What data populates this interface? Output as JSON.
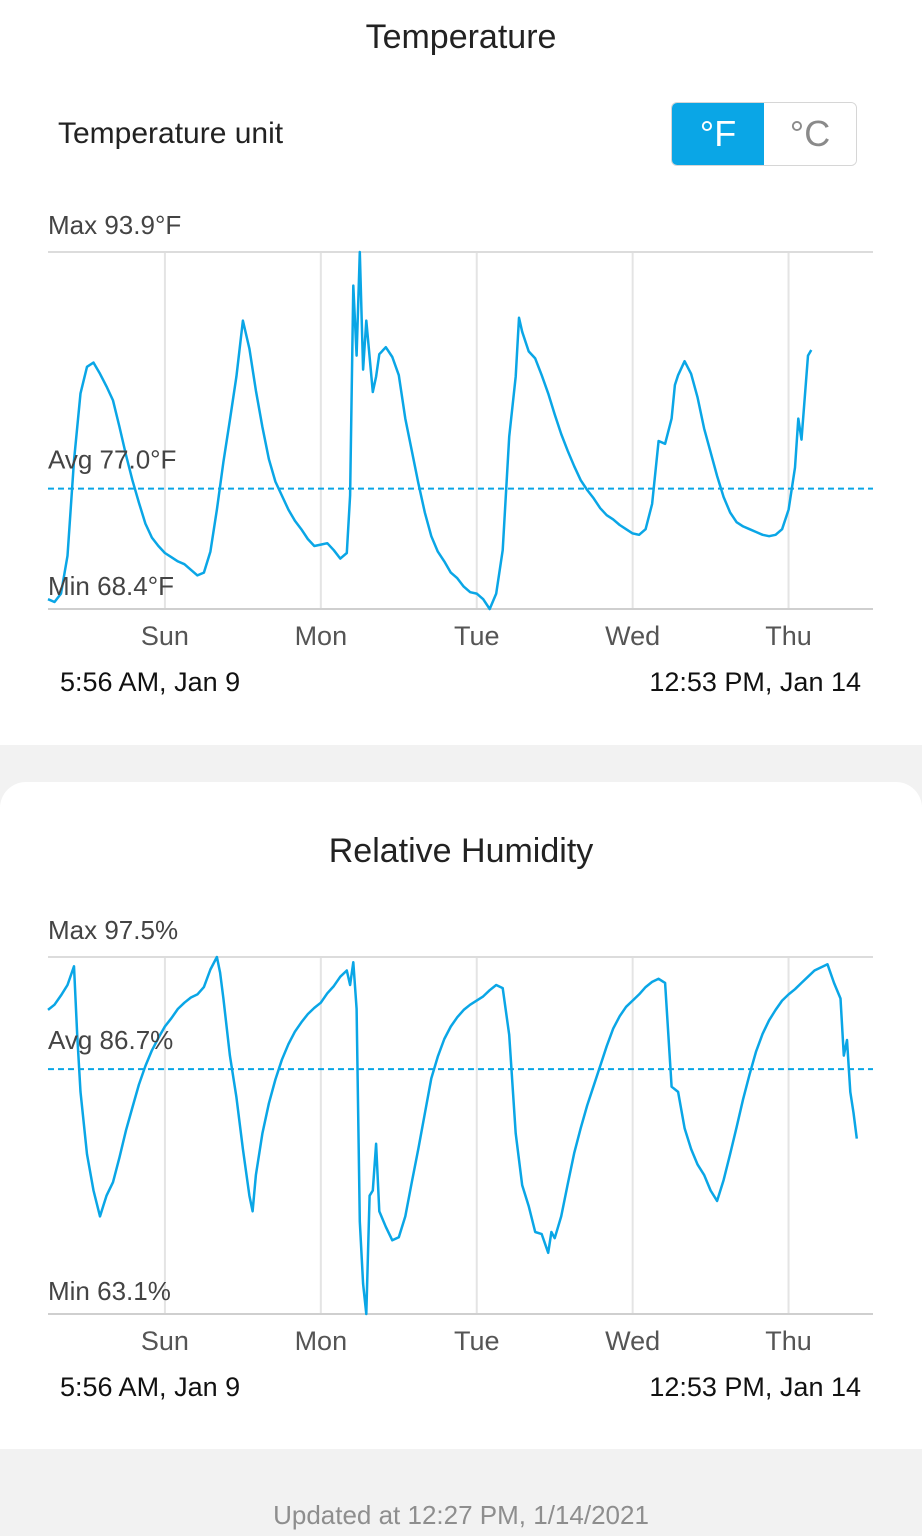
{
  "temperature": {
    "title": "Temperature",
    "unit_label": "Temperature unit",
    "unit_options": [
      "°F",
      "°C"
    ],
    "selected_unit": "°F",
    "start_label": "5:56 AM,  Jan 9",
    "end_label": "12:53 PM,  Jan 14",
    "chart_data": {
      "type": "line",
      "series_color": "#0aa6e6",
      "max_label": "Max 93.9°F",
      "avg_label": "Avg 77.0°F",
      "min_label": "Min 68.4°F",
      "max": 93.9,
      "avg": 77.0,
      "min": 68.4,
      "ylim": [
        68.4,
        93.9
      ],
      "xlim": [
        0,
        127
      ],
      "x_unit": "hours since 5:56 AM, Jan 9",
      "tick_labels": [
        "Sun",
        "Mon",
        "Tue",
        "Wed",
        "Thu"
      ],
      "tick_positions": [
        18,
        42,
        66,
        90,
        114
      ],
      "points": [
        [
          0,
          69.1
        ],
        [
          1,
          68.9
        ],
        [
          2,
          69.5
        ],
        [
          3,
          72.2
        ],
        [
          4,
          79.0
        ],
        [
          5,
          83.8
        ],
        [
          6,
          85.7
        ],
        [
          7,
          86.0
        ],
        [
          8,
          85.2
        ],
        [
          9,
          84.3
        ],
        [
          10,
          83.3
        ],
        [
          11,
          81.4
        ],
        [
          12,
          79.4
        ],
        [
          13,
          77.6
        ],
        [
          14,
          76.0
        ],
        [
          15,
          74.5
        ],
        [
          16,
          73.5
        ],
        [
          17,
          72.9
        ],
        [
          18,
          72.4
        ],
        [
          19,
          72.1
        ],
        [
          20,
          71.8
        ],
        [
          21,
          71.6
        ],
        [
          22,
          71.2
        ],
        [
          23,
          70.8
        ],
        [
          24,
          71.0
        ],
        [
          25,
          72.5
        ],
        [
          26,
          75.5
        ],
        [
          27,
          78.9
        ],
        [
          28,
          81.9
        ],
        [
          29,
          85.0
        ],
        [
          30,
          89.0
        ],
        [
          31,
          87.0
        ],
        [
          32,
          84.0
        ],
        [
          33,
          81.4
        ],
        [
          34,
          79.1
        ],
        [
          35,
          77.5
        ],
        [
          36,
          76.5
        ],
        [
          37,
          75.5
        ],
        [
          38,
          74.7
        ],
        [
          39,
          74.1
        ],
        [
          40,
          73.4
        ],
        [
          41,
          72.9
        ],
        [
          42,
          73.0
        ],
        [
          43,
          73.1
        ],
        [
          44,
          72.6
        ],
        [
          45,
          72.0
        ],
        [
          46,
          72.4
        ],
        [
          46.5,
          76.5
        ],
        [
          47,
          91.5
        ],
        [
          47.5,
          86.5
        ],
        [
          48,
          93.9
        ],
        [
          48.5,
          85.5
        ],
        [
          49,
          89.0
        ],
        [
          50,
          83.9
        ],
        [
          50.5,
          85.0
        ],
        [
          51,
          86.6
        ],
        [
          52,
          87.1
        ],
        [
          53,
          86.4
        ],
        [
          54,
          85.1
        ],
        [
          55,
          82.0
        ],
        [
          56,
          79.7
        ],
        [
          57,
          77.4
        ],
        [
          58,
          75.3
        ],
        [
          59,
          73.6
        ],
        [
          60,
          72.5
        ],
        [
          61,
          71.8
        ],
        [
          62,
          71.0
        ],
        [
          63,
          70.6
        ],
        [
          64,
          70.0
        ],
        [
          65,
          69.6
        ],
        [
          66,
          69.5
        ],
        [
          67,
          69.1
        ],
        [
          68,
          68.4
        ],
        [
          69,
          69.5
        ],
        [
          70,
          72.6
        ],
        [
          71,
          80.7
        ],
        [
          72,
          85.0
        ],
        [
          72.5,
          89.2
        ],
        [
          73,
          88.2
        ],
        [
          74,
          86.8
        ],
        [
          75,
          86.3
        ],
        [
          76,
          85.1
        ],
        [
          77,
          83.8
        ],
        [
          78,
          82.3
        ],
        [
          79,
          80.9
        ],
        [
          80,
          79.7
        ],
        [
          81,
          78.6
        ],
        [
          82,
          77.6
        ],
        [
          83,
          76.9
        ],
        [
          84,
          76.3
        ],
        [
          85,
          75.6
        ],
        [
          86,
          75.1
        ],
        [
          87,
          74.8
        ],
        [
          88,
          74.4
        ],
        [
          89,
          74.1
        ],
        [
          90,
          73.8
        ],
        [
          91,
          73.7
        ],
        [
          92,
          74.1
        ],
        [
          93,
          75.9
        ],
        [
          94,
          80.4
        ],
        [
          95,
          80.2
        ],
        [
          96,
          82.0
        ],
        [
          96.5,
          84.4
        ],
        [
          97,
          85.1
        ],
        [
          98,
          86.1
        ],
        [
          99,
          85.2
        ],
        [
          100,
          83.5
        ],
        [
          101,
          81.3
        ],
        [
          102,
          79.6
        ],
        [
          103,
          77.9
        ],
        [
          104,
          76.4
        ],
        [
          105,
          75.3
        ],
        [
          106,
          74.6
        ],
        [
          107,
          74.3
        ],
        [
          108,
          74.1
        ],
        [
          109,
          73.9
        ],
        [
          110,
          73.7
        ],
        [
          111,
          73.6
        ],
        [
          112,
          73.7
        ],
        [
          113,
          74.1
        ],
        [
          114,
          75.5
        ],
        [
          115,
          78.5
        ],
        [
          115.5,
          82.0
        ],
        [
          116,
          80.5
        ],
        [
          117,
          86.5
        ],
        [
          117.5,
          86.9
        ]
      ]
    }
  },
  "humidity": {
    "title": "Relative Humidity",
    "start_label": "5:56 AM,  Jan 9",
    "end_label": "12:53 PM,  Jan 14",
    "chart_data": {
      "type": "line",
      "series_color": "#0aa6e6",
      "max_label": "Max 97.5%",
      "avg_label": "Avg 86.7%",
      "min_label": "Min 63.1%",
      "max": 97.5,
      "avg": 86.7,
      "min": 63.1,
      "ylim": [
        63.1,
        97.5
      ],
      "xlim": [
        0,
        127
      ],
      "x_unit": "hours since 5:56 AM, Jan 9",
      "tick_labels": [
        "Sun",
        "Mon",
        "Tue",
        "Wed",
        "Thu"
      ],
      "tick_positions": [
        18,
        42,
        66,
        90,
        114
      ],
      "points": [
        [
          0,
          92.4
        ],
        [
          1,
          92.9
        ],
        [
          2,
          93.8
        ],
        [
          3,
          94.8
        ],
        [
          4,
          96.6
        ],
        [
          4.5,
          90.0
        ],
        [
          5,
          84.5
        ],
        [
          6,
          78.5
        ],
        [
          7,
          75.0
        ],
        [
          8,
          72.5
        ],
        [
          8.5,
          73.5
        ],
        [
          9,
          74.5
        ],
        [
          10,
          75.8
        ],
        [
          11,
          78.2
        ],
        [
          12,
          80.8
        ],
        [
          13,
          83.0
        ],
        [
          14,
          85.2
        ],
        [
          15,
          87.0
        ],
        [
          16,
          88.5
        ],
        [
          17,
          89.7
        ],
        [
          18,
          90.8
        ],
        [
          19,
          91.6
        ],
        [
          20,
          92.5
        ],
        [
          21,
          93.1
        ],
        [
          22,
          93.6
        ],
        [
          23,
          93.9
        ],
        [
          24,
          94.6
        ],
        [
          25,
          96.3
        ],
        [
          26,
          97.5
        ],
        [
          26.5,
          96.0
        ],
        [
          27,
          93.5
        ],
        [
          28,
          88.0
        ],
        [
          29,
          84.0
        ],
        [
          30,
          79.0
        ],
        [
          31,
          74.5
        ],
        [
          31.5,
          73.0
        ],
        [
          32,
          76.5
        ],
        [
          33,
          80.5
        ],
        [
          34,
          83.4
        ],
        [
          35,
          85.7
        ],
        [
          36,
          87.6
        ],
        [
          37,
          89.1
        ],
        [
          38,
          90.3
        ],
        [
          39,
          91.2
        ],
        [
          40,
          92.0
        ],
        [
          41,
          92.6
        ],
        [
          42,
          93.1
        ],
        [
          43,
          94.0
        ],
        [
          44,
          94.7
        ],
        [
          45,
          95.6
        ],
        [
          46,
          96.2
        ],
        [
          46.5,
          94.8
        ],
        [
          47,
          97.0
        ],
        [
          47.5,
          92.5
        ],
        [
          48,
          72.0
        ],
        [
          48.5,
          66.0
        ],
        [
          49,
          63.1
        ],
        [
          49.5,
          74.5
        ],
        [
          50,
          75.0
        ],
        [
          50.5,
          79.5
        ],
        [
          51,
          73.0
        ],
        [
          52,
          71.5
        ],
        [
          53,
          70.2
        ],
        [
          54,
          70.5
        ],
        [
          55,
          72.5
        ],
        [
          56,
          75.8
        ],
        [
          57,
          79.0
        ],
        [
          58,
          82.4
        ],
        [
          59,
          85.8
        ],
        [
          60,
          87.9
        ],
        [
          61,
          89.6
        ],
        [
          62,
          90.8
        ],
        [
          63,
          91.7
        ],
        [
          64,
          92.4
        ],
        [
          65,
          92.9
        ],
        [
          66,
          93.3
        ],
        [
          67,
          93.7
        ],
        [
          68,
          94.3
        ],
        [
          69,
          94.8
        ],
        [
          70,
          94.5
        ],
        [
          71,
          90.0
        ],
        [
          72,
          80.5
        ],
        [
          73,
          75.5
        ],
        [
          74,
          73.5
        ],
        [
          75,
          71.0
        ],
        [
          76,
          70.8
        ],
        [
          77,
          69.0
        ],
        [
          77.5,
          71.0
        ],
        [
          78,
          70.4
        ],
        [
          79,
          72.5
        ],
        [
          80,
          75.6
        ],
        [
          81,
          78.6
        ],
        [
          82,
          81.0
        ],
        [
          83,
          83.2
        ],
        [
          84,
          85.1
        ],
        [
          85,
          87.0
        ],
        [
          86,
          88.9
        ],
        [
          87,
          90.6
        ],
        [
          88,
          91.8
        ],
        [
          89,
          92.7
        ],
        [
          90,
          93.3
        ],
        [
          91,
          93.9
        ],
        [
          92,
          94.6
        ],
        [
          93,
          95.1
        ],
        [
          94,
          95.4
        ],
        [
          95,
          95.0
        ],
        [
          96,
          85.0
        ],
        [
          97,
          84.5
        ],
        [
          98,
          81.0
        ],
        [
          99,
          79.0
        ],
        [
          100,
          77.5
        ],
        [
          101,
          76.5
        ],
        [
          102,
          75.0
        ],
        [
          103,
          74.0
        ],
        [
          104,
          76.0
        ],
        [
          105,
          78.5
        ],
        [
          106,
          81.1
        ],
        [
          107,
          83.8
        ],
        [
          108,
          86.2
        ],
        [
          109,
          88.4
        ],
        [
          110,
          90.1
        ],
        [
          111,
          91.4
        ],
        [
          112,
          92.4
        ],
        [
          113,
          93.3
        ],
        [
          114,
          93.9
        ],
        [
          115,
          94.4
        ],
        [
          116,
          95.0
        ],
        [
          117,
          95.6
        ],
        [
          118,
          96.2
        ],
        [
          119,
          96.5
        ],
        [
          120,
          96.8
        ],
        [
          121,
          95.0
        ],
        [
          122,
          93.5
        ],
        [
          122.5,
          88.0
        ],
        [
          123,
          89.5
        ],
        [
          123.5,
          84.5
        ],
        [
          124,
          82.5
        ],
        [
          124.5,
          80.0
        ]
      ]
    }
  },
  "footer": {
    "updated_text": "Updated at 12:27 PM,  1/14/2021"
  }
}
